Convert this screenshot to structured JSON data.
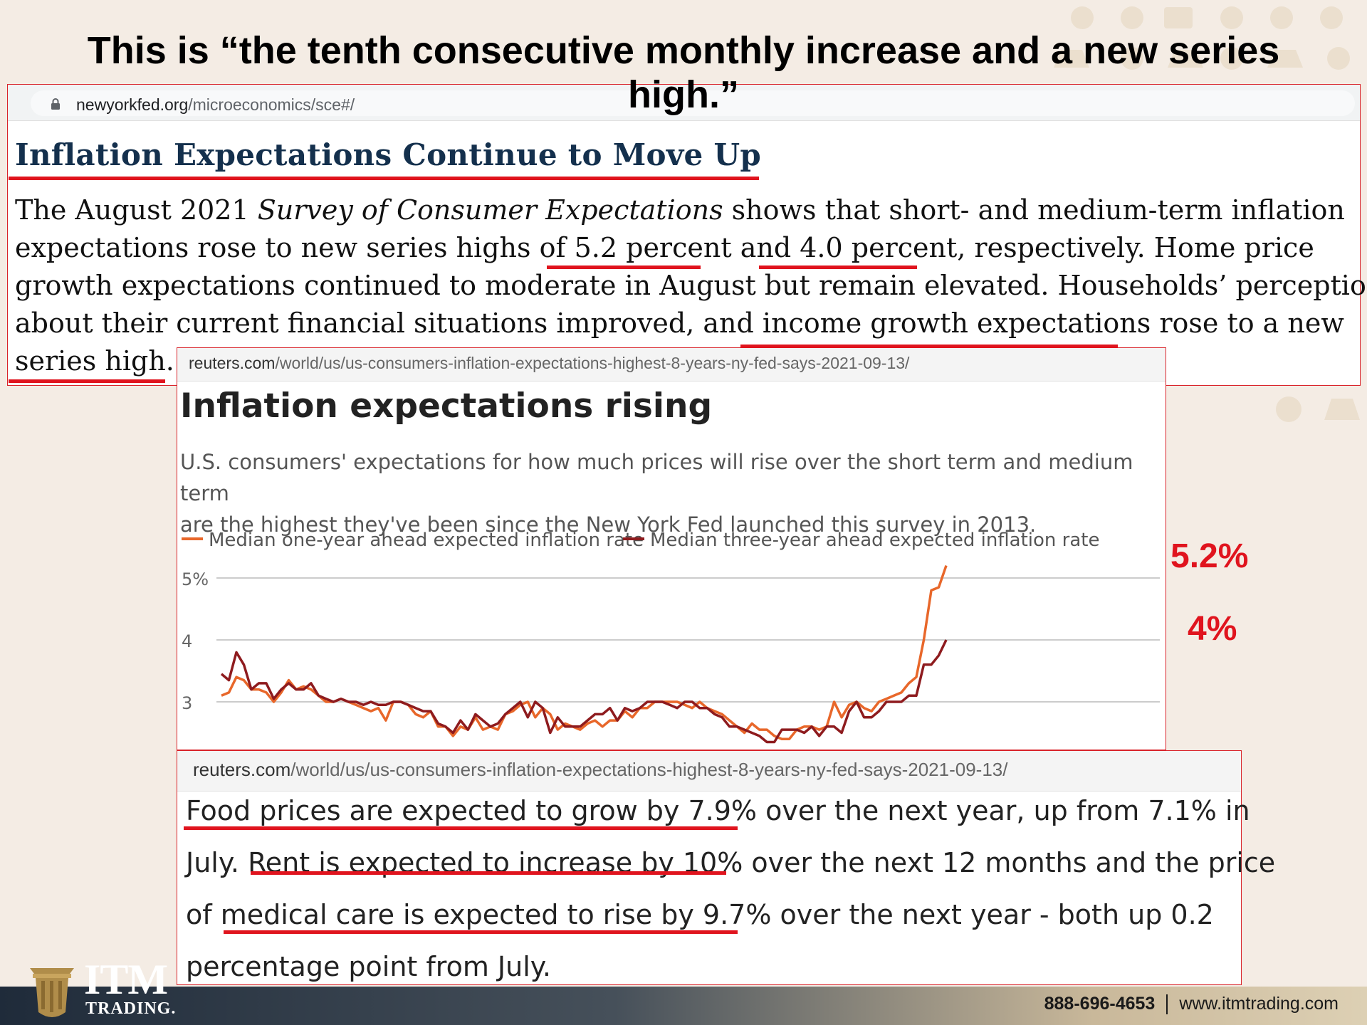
{
  "slide": {
    "title": "This is “the tenth consecutive monthly increase and a new series high.”"
  },
  "nyfed": {
    "url_domain": "newyorkfed.org",
    "url_path": "/microeconomics/sce#/",
    "headline": "Inflation Expectations Continue to Move Up",
    "body_lines": [
      "The August 2021 ",
      "Survey of Consumer Expectations",
      " shows that short- and medium-term inflation",
      "expectations rose to new series highs of ",
      "5.2 percent",
      " and ",
      "4.0 percent",
      ", respectively. Home price",
      "growth expectations continued to moderate in August but remain elevated. Households’ perceptions",
      "about their current financial situations improved, and ",
      "income growth expectations",
      " rose to a new",
      "series high."
    ]
  },
  "reuters_chart": {
    "url_domain": "reuters.com",
    "url_path": "/world/us/us-consumers-inflation-expectations-highest-8-years-ny-fed-says-2021-09-13/",
    "title": "Inflation expectations rising",
    "subtitle_line1": "U.S. consumers' expectations for how much prices will rise over the short term and medium term",
    "subtitle_line2": "are the highest they've been since the New York Fed launched this survey in 2013."
  },
  "chart_data": {
    "type": "line",
    "title": "Inflation expectations rising",
    "ylim": [
      2.3,
      5.3
    ],
    "y_ticks": [
      "5%",
      "4",
      "3"
    ],
    "y_tick_values": [
      5,
      4,
      3
    ],
    "grid": true,
    "legend_position": "top-left",
    "x": [
      0,
      1,
      2,
      3,
      4,
      5,
      6,
      7,
      8,
      9,
      10,
      11,
      12,
      13,
      14,
      15,
      16,
      17,
      18,
      19,
      20,
      21,
      22,
      23,
      24,
      25,
      26,
      27,
      28,
      29,
      30,
      31,
      32,
      33,
      34,
      35,
      36,
      37,
      38,
      39,
      40,
      41,
      42,
      43,
      44,
      45,
      46,
      47,
      48,
      49,
      50,
      51,
      52,
      53,
      54,
      55,
      56,
      57,
      58,
      59,
      60,
      61,
      62,
      63,
      64,
      65,
      66,
      67,
      68,
      69,
      70,
      71,
      72,
      73,
      74,
      75,
      76,
      77,
      78,
      79,
      80,
      81,
      82,
      83,
      84,
      85,
      86,
      87,
      88,
      89,
      90,
      91,
      92,
      93,
      94,
      95,
      96,
      97
    ],
    "series": [
      {
        "name": "Median one-year ahead expected inflation rate",
        "color": "#e8672a",
        "values": [
          3.1,
          3.15,
          3.4,
          3.35,
          3.2,
          3.2,
          3.15,
          3.0,
          3.15,
          3.35,
          3.2,
          3.25,
          3.2,
          3.1,
          3.0,
          3.0,
          3.05,
          3.0,
          2.95,
          2.9,
          2.85,
          2.9,
          2.7,
          3.0,
          3.0,
          2.95,
          2.8,
          2.75,
          2.85,
          2.6,
          2.6,
          2.45,
          2.6,
          2.55,
          2.75,
          2.55,
          2.6,
          2.55,
          2.8,
          2.85,
          2.95,
          3.0,
          2.75,
          2.9,
          2.8,
          2.55,
          2.65,
          2.6,
          2.55,
          2.65,
          2.7,
          2.6,
          2.7,
          2.7,
          2.85,
          2.75,
          2.9,
          2.9,
          3.0,
          3.0,
          3.0,
          3.0,
          2.95,
          2.9,
          3.0,
          2.9,
          2.85,
          2.8,
          2.7,
          2.6,
          2.5,
          2.65,
          2.55,
          2.55,
          2.45,
          2.4,
          2.4,
          2.55,
          2.6,
          2.6,
          2.55,
          2.6,
          3.0,
          2.75,
          2.95,
          3.0,
          2.9,
          2.85,
          3.0,
          3.05,
          3.1,
          3.15,
          3.3,
          3.4,
          4.0,
          4.8,
          4.85,
          5.2
        ]
      },
      {
        "name": "Median three-year ahead expected inflation rate",
        "color": "#8e1b1e",
        "values": [
          3.45,
          3.35,
          3.8,
          3.6,
          3.2,
          3.3,
          3.3,
          3.05,
          3.2,
          3.3,
          3.2,
          3.2,
          3.3,
          3.1,
          3.05,
          3.0,
          3.05,
          3.0,
          3.0,
          2.95,
          3.0,
          2.95,
          2.95,
          3.0,
          3.0,
          2.95,
          2.9,
          2.85,
          2.85,
          2.65,
          2.6,
          2.5,
          2.7,
          2.55,
          2.8,
          2.7,
          2.6,
          2.65,
          2.8,
          2.9,
          3.0,
          2.75,
          3.0,
          2.9,
          2.5,
          2.75,
          2.6,
          2.6,
          2.6,
          2.7,
          2.8,
          2.8,
          2.9,
          2.7,
          2.9,
          2.85,
          2.9,
          3.0,
          3.0,
          3.0,
          2.95,
          2.9,
          3.0,
          3.0,
          2.9,
          2.9,
          2.8,
          2.75,
          2.6,
          2.6,
          2.55,
          2.5,
          2.45,
          2.35,
          2.35,
          2.55,
          2.55,
          2.55,
          2.5,
          2.6,
          2.45,
          2.6,
          2.6,
          2.5,
          2.85,
          3.0,
          2.75,
          2.75,
          2.85,
          3.0,
          3.0,
          3.0,
          3.1,
          3.1,
          3.6,
          3.6,
          3.75,
          4.0
        ]
      }
    ]
  },
  "callouts": {
    "one_year": "5.2%",
    "three_year": "4%"
  },
  "reuters_text": {
    "url_domain": "reuters.com",
    "url_path": "/world/us/us-consumers-inflation-expectations-highest-8-years-ny-fed-says-2021-09-13/",
    "l1_a": "Food prices are expected to grow by 7.9%",
    "l1_b": " over the next year, up from 7.1% in",
    "l2_a": "July. ",
    "l2_b": "Rent is expected to increase by 10%",
    "l2_c": " over the next 12 months and the price",
    "l3_a": "of ",
    "l3_b": "medical care is expected to rise by 9.7%",
    "l3_c": " over the next year - both up 0.2",
    "l4": "percentage point from July."
  },
  "footer": {
    "logo_main": "ITM",
    "logo_sub": "TRADING.",
    "phone": "888-696-4653",
    "website": "www.itmtrading.com"
  },
  "colors": {
    "accent_red": "#e0141e",
    "panel_border": "#d9232a",
    "headline_navy": "#14304d",
    "gold": "#b08d4a"
  }
}
